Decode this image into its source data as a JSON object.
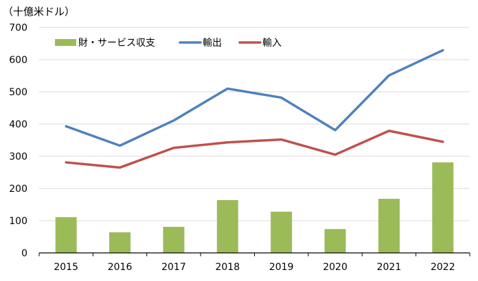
{
  "chart_data": {
    "type": "bar+line",
    "unit_label": "（十億米ドル）",
    "categories": [
      "2015",
      "2016",
      "2017",
      "2018",
      "2019",
      "2020",
      "2021",
      "2022"
    ],
    "ylim": [
      0,
      700
    ],
    "yticks": [
      0,
      100,
      200,
      300,
      400,
      500,
      600,
      700
    ],
    "grid": true,
    "legend_position": "top-left",
    "series": [
      {
        "name": "財・サービス収支",
        "type": "bar",
        "color": "#9BBB59",
        "values": [
          111,
          64,
          81,
          164,
          128,
          74,
          168,
          281
        ]
      },
      {
        "name": "輸出",
        "type": "line",
        "color": "#4F81BD",
        "values": [
          393,
          333,
          411,
          510,
          482,
          381,
          551,
          629
        ]
      },
      {
        "name": "輸入",
        "type": "line",
        "color": "#C0504D",
        "values": [
          281,
          265,
          326,
          343,
          352,
          305,
          379,
          345
        ]
      }
    ]
  }
}
